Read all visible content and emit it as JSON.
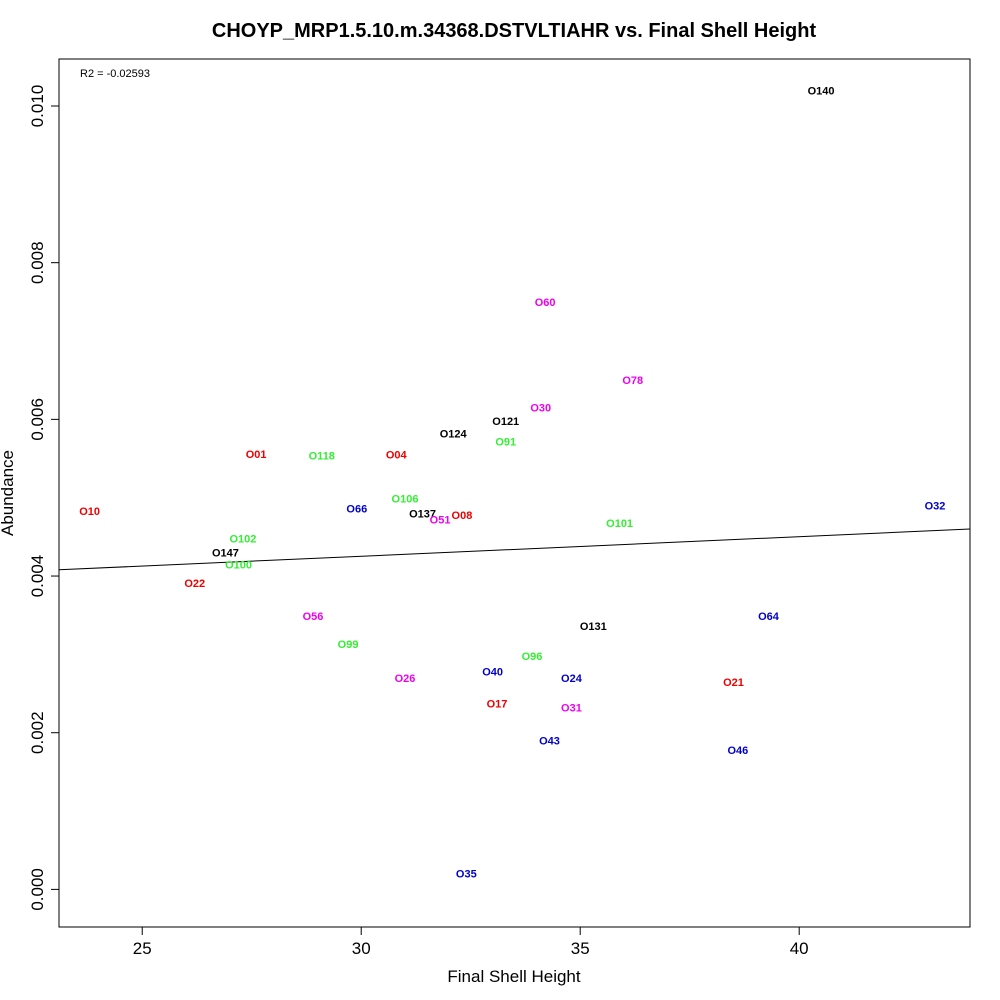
{
  "chart_data": {
    "type": "scatter",
    "title": "CHOYP_MRP1.5.10.m.34368.DSTVLTIAHR vs. Final Shell Height",
    "xlabel": "Final Shell Height",
    "ylabel": "Abundance",
    "annotation": "R2 = -0.02593",
    "xlim": [
      23.1,
      43.9
    ],
    "ylim": [
      -0.00048,
      0.0106
    ],
    "xticks": [
      25,
      30,
      35,
      40
    ],
    "yticks": [
      0.0,
      0.002,
      0.004,
      0.006,
      0.008,
      0.01
    ],
    "ytick_labels": [
      "0.000",
      "0.002",
      "0.004",
      "0.006",
      "0.008",
      "0.010"
    ],
    "grid": false,
    "regression_line": {
      "x": [
        23.1,
        43.9
      ],
      "y": [
        0.00408,
        0.0046
      ]
    },
    "colors": {
      "red": "#ee0000",
      "green": "#33ee33",
      "blue": "#0000cc",
      "magenta": "#ee00ee",
      "black": "#000000"
    },
    "points": [
      {
        "label": "O140",
        "x": 40.5,
        "y": 0.0102,
        "color": "black"
      },
      {
        "label": "O60",
        "x": 34.2,
        "y": 0.0075,
        "color": "magenta"
      },
      {
        "label": "O78",
        "x": 36.2,
        "y": 0.0065,
        "color": "magenta"
      },
      {
        "label": "O30",
        "x": 34.1,
        "y": 0.00615,
        "color": "magenta"
      },
      {
        "label": "O121",
        "x": 33.3,
        "y": 0.00598,
        "color": "black"
      },
      {
        "label": "O124",
        "x": 32.1,
        "y": 0.00582,
        "color": "black"
      },
      {
        "label": "O91",
        "x": 33.3,
        "y": 0.00572,
        "color": "green"
      },
      {
        "label": "O01",
        "x": 27.6,
        "y": 0.00556,
        "color": "red"
      },
      {
        "label": "O118",
        "x": 29.1,
        "y": 0.00554,
        "color": "green"
      },
      {
        "label": "O04",
        "x": 30.8,
        "y": 0.00555,
        "color": "red"
      },
      {
        "label": "O106",
        "x": 31.0,
        "y": 0.00499,
        "color": "green"
      },
      {
        "label": "O32",
        "x": 43.1,
        "y": 0.0049,
        "color": "blue"
      },
      {
        "label": "O66",
        "x": 29.9,
        "y": 0.00486,
        "color": "blue"
      },
      {
        "label": "O10",
        "x": 23.8,
        "y": 0.00483,
        "color": "red"
      },
      {
        "label": "O137",
        "x": 31.4,
        "y": 0.0048,
        "color": "black"
      },
      {
        "label": "O08",
        "x": 32.3,
        "y": 0.00478,
        "color": "red"
      },
      {
        "label": "O51",
        "x": 31.8,
        "y": 0.00472,
        "color": "magenta"
      },
      {
        "label": "O101",
        "x": 35.9,
        "y": 0.00468,
        "color": "green"
      },
      {
        "label": "O102",
        "x": 27.3,
        "y": 0.00448,
        "color": "green"
      },
      {
        "label": "O147",
        "x": 26.9,
        "y": 0.0043,
        "color": "black"
      },
      {
        "label": "O100",
        "x": 27.2,
        "y": 0.00415,
        "color": "green"
      },
      {
        "label": "O22",
        "x": 26.2,
        "y": 0.00391,
        "color": "red"
      },
      {
        "label": "O56",
        "x": 28.9,
        "y": 0.00349,
        "color": "magenta"
      },
      {
        "label": "O64",
        "x": 39.3,
        "y": 0.00349,
        "color": "blue"
      },
      {
        "label": "O131",
        "x": 35.3,
        "y": 0.00336,
        "color": "black"
      },
      {
        "label": "O99",
        "x": 29.7,
        "y": 0.00313,
        "color": "green"
      },
      {
        "label": "O96",
        "x": 33.9,
        "y": 0.00298,
        "color": "green"
      },
      {
        "label": "O40",
        "x": 33.0,
        "y": 0.00278,
        "color": "blue"
      },
      {
        "label": "O26",
        "x": 31.0,
        "y": 0.0027,
        "color": "magenta"
      },
      {
        "label": "O24",
        "x": 34.8,
        "y": 0.0027,
        "color": "blue"
      },
      {
        "label": "O21",
        "x": 38.5,
        "y": 0.00265,
        "color": "red"
      },
      {
        "label": "O17",
        "x": 33.1,
        "y": 0.00237,
        "color": "red"
      },
      {
        "label": "O31",
        "x": 34.8,
        "y": 0.00232,
        "color": "magenta"
      },
      {
        "label": "O43",
        "x": 34.3,
        "y": 0.0019,
        "color": "blue"
      },
      {
        "label": "O46",
        "x": 38.6,
        "y": 0.00178,
        "color": "blue"
      },
      {
        "label": "O35",
        "x": 32.4,
        "y": 0.0002,
        "color": "blue"
      }
    ]
  }
}
